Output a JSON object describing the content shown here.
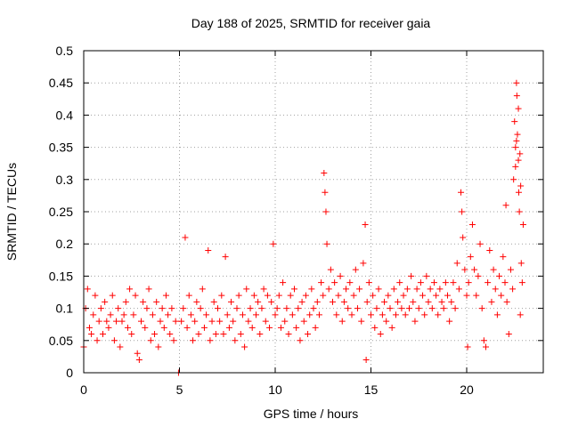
{
  "chart_data": {
    "type": "scatter",
    "title": "Day 188 of 2025, SRMTID for receiver gaia",
    "xlabel": "GPS time / hours",
    "ylabel": "SRMTID / TECUs",
    "xlim": [
      0,
      24
    ],
    "ylim": [
      0,
      0.5
    ],
    "xticks": [
      0,
      5,
      10,
      15,
      20
    ],
    "xtick_labels": [
      "0",
      "5",
      "10",
      "15",
      "20"
    ],
    "yticks": [
      0,
      0.05,
      0.1,
      0.15,
      0.2,
      0.25,
      0.3,
      0.35,
      0.4,
      0.45,
      0.5
    ],
    "ytick_labels": [
      "0",
      "0.05",
      "0.1",
      "0.15",
      "0.2",
      "0.25",
      "0.3",
      "0.35",
      "0.4",
      "0.45",
      "0.5"
    ],
    "grid": true,
    "marker": "+",
    "color": "#ff0000",
    "series": [
      {
        "name": "SRMTID",
        "points": [
          [
            0.0,
            0.04
          ],
          [
            0.1,
            0.1
          ],
          [
            0.2,
            0.13
          ],
          [
            0.3,
            0.07
          ],
          [
            0.4,
            0.06
          ],
          [
            0.5,
            0.09
          ],
          [
            0.6,
            0.12
          ],
          [
            0.7,
            0.05
          ],
          [
            0.8,
            0.08
          ],
          [
            0.9,
            0.1
          ],
          [
            1.0,
            0.06
          ],
          [
            1.1,
            0.11
          ],
          [
            1.2,
            0.08
          ],
          [
            1.3,
            0.07
          ],
          [
            1.4,
            0.09
          ],
          [
            1.5,
            0.12
          ],
          [
            1.6,
            0.05
          ],
          [
            1.7,
            0.08
          ],
          [
            1.8,
            0.1
          ],
          [
            1.9,
            0.04
          ],
          [
            2.0,
            0.08
          ],
          [
            2.1,
            0.09
          ],
          [
            2.2,
            0.11
          ],
          [
            2.3,
            0.07
          ],
          [
            2.4,
            0.13
          ],
          [
            2.5,
            0.06
          ],
          [
            2.6,
            0.09
          ],
          [
            2.7,
            0.12
          ],
          [
            2.8,
            0.03
          ],
          [
            2.9,
            0.02
          ],
          [
            3.0,
            0.08
          ],
          [
            3.1,
            0.11
          ],
          [
            3.2,
            0.07
          ],
          [
            3.3,
            0.1
          ],
          [
            3.4,
            0.13
          ],
          [
            3.5,
            0.05
          ],
          [
            3.6,
            0.09
          ],
          [
            3.7,
            0.06
          ],
          [
            3.8,
            0.11
          ],
          [
            3.9,
            0.04
          ],
          [
            4.0,
            0.08
          ],
          [
            4.1,
            0.1
          ],
          [
            4.2,
            0.07
          ],
          [
            4.3,
            0.12
          ],
          [
            4.4,
            0.09
          ],
          [
            4.5,
            0.06
          ],
          [
            4.6,
            0.1
          ],
          [
            4.7,
            0.05
          ],
          [
            4.8,
            0.08
          ],
          [
            4.95,
            0.0
          ],
          [
            5.1,
            0.08
          ],
          [
            5.2,
            0.1
          ],
          [
            5.3,
            0.21
          ],
          [
            5.4,
            0.07
          ],
          [
            5.5,
            0.12
          ],
          [
            5.6,
            0.09
          ],
          [
            5.7,
            0.05
          ],
          [
            5.8,
            0.08
          ],
          [
            5.9,
            0.11
          ],
          [
            6.0,
            0.06
          ],
          [
            6.1,
            0.1
          ],
          [
            6.2,
            0.13
          ],
          [
            6.3,
            0.07
          ],
          [
            6.4,
            0.09
          ],
          [
            6.5,
            0.19
          ],
          [
            6.6,
            0.05
          ],
          [
            6.7,
            0.08
          ],
          [
            6.8,
            0.11
          ],
          [
            6.9,
            0.06
          ],
          [
            7.0,
            0.1
          ],
          [
            7.1,
            0.08
          ],
          [
            7.2,
            0.12
          ],
          [
            7.3,
            0.06
          ],
          [
            7.4,
            0.18
          ],
          [
            7.5,
            0.09
          ],
          [
            7.6,
            0.07
          ],
          [
            7.7,
            0.11
          ],
          [
            7.8,
            0.08
          ],
          [
            7.9,
            0.05
          ],
          [
            8.0,
            0.1
          ],
          [
            8.1,
            0.12
          ],
          [
            8.2,
            0.06
          ],
          [
            8.3,
            0.09
          ],
          [
            8.4,
            0.04
          ],
          [
            8.5,
            0.13
          ],
          [
            8.6,
            0.08
          ],
          [
            8.7,
            0.1
          ],
          [
            8.8,
            0.07
          ],
          [
            8.9,
            0.12
          ],
          [
            9.0,
            0.09
          ],
          [
            9.1,
            0.11
          ],
          [
            9.2,
            0.06
          ],
          [
            9.3,
            0.1
          ],
          [
            9.4,
            0.13
          ],
          [
            9.5,
            0.08
          ],
          [
            9.6,
            0.12
          ],
          [
            9.7,
            0.07
          ],
          [
            9.8,
            0.11
          ],
          [
            9.9,
            0.2
          ],
          [
            10.0,
            0.09
          ],
          [
            10.1,
            0.1
          ],
          [
            10.2,
            0.12
          ],
          [
            10.3,
            0.07
          ],
          [
            10.4,
            0.14
          ],
          [
            10.5,
            0.08
          ],
          [
            10.6,
            0.1
          ],
          [
            10.7,
            0.06
          ],
          [
            10.8,
            0.12
          ],
          [
            10.9,
            0.09
          ],
          [
            11.0,
            0.13
          ],
          [
            11.1,
            0.07
          ],
          [
            11.2,
            0.1
          ],
          [
            11.3,
            0.05
          ],
          [
            11.4,
            0.11
          ],
          [
            11.5,
            0.08
          ],
          [
            11.6,
            0.12
          ],
          [
            11.7,
            0.06
          ],
          [
            11.8,
            0.09
          ],
          [
            11.9,
            0.13
          ],
          [
            12.0,
            0.1
          ],
          [
            12.1,
            0.07
          ],
          [
            12.2,
            0.11
          ],
          [
            12.3,
            0.09
          ],
          [
            12.4,
            0.14
          ],
          [
            12.5,
            0.12
          ],
          [
            12.55,
            0.31
          ],
          [
            12.6,
            0.28
          ],
          [
            12.65,
            0.25
          ],
          [
            12.7,
            0.2
          ],
          [
            12.8,
            0.13
          ],
          [
            12.9,
            0.16
          ],
          [
            13.0,
            0.11
          ],
          [
            13.1,
            0.14
          ],
          [
            13.2,
            0.09
          ],
          [
            13.3,
            0.12
          ],
          [
            13.4,
            0.15
          ],
          [
            13.5,
            0.08
          ],
          [
            13.6,
            0.11
          ],
          [
            13.7,
            0.13
          ],
          [
            13.8,
            0.1
          ],
          [
            13.9,
            0.14
          ],
          [
            14.0,
            0.09
          ],
          [
            14.1,
            0.12
          ],
          [
            14.2,
            0.16
          ],
          [
            14.3,
            0.1
          ],
          [
            14.4,
            0.13
          ],
          [
            14.5,
            0.08
          ],
          [
            14.6,
            0.17
          ],
          [
            14.7,
            0.23
          ],
          [
            14.75,
            0.02
          ],
          [
            14.8,
            0.11
          ],
          [
            14.9,
            0.14
          ],
          [
            15.0,
            0.09
          ],
          [
            15.1,
            0.12
          ],
          [
            15.2,
            0.07
          ],
          [
            15.3,
            0.1
          ],
          [
            15.4,
            0.13
          ],
          [
            15.5,
            0.06
          ],
          [
            15.6,
            0.09
          ],
          [
            15.7,
            0.11
          ],
          [
            15.8,
            0.08
          ],
          [
            15.9,
            0.12
          ],
          [
            16.0,
            0.1
          ],
          [
            16.1,
            0.07
          ],
          [
            16.2,
            0.13
          ],
          [
            16.3,
            0.09
          ],
          [
            16.4,
            0.11
          ],
          [
            16.5,
            0.14
          ],
          [
            16.6,
            0.1
          ],
          [
            16.7,
            0.12
          ],
          [
            16.8,
            0.09
          ],
          [
            16.9,
            0.13
          ],
          [
            17.0,
            0.1
          ],
          [
            17.1,
            0.15
          ],
          [
            17.2,
            0.11
          ],
          [
            17.3,
            0.08
          ],
          [
            17.4,
            0.13
          ],
          [
            17.5,
            0.1
          ],
          [
            17.6,
            0.14
          ],
          [
            17.7,
            0.12
          ],
          [
            17.8,
            0.09
          ],
          [
            17.9,
            0.15
          ],
          [
            18.0,
            0.11
          ],
          [
            18.1,
            0.13
          ],
          [
            18.2,
            0.1
          ],
          [
            18.3,
            0.14
          ],
          [
            18.4,
            0.12
          ],
          [
            18.5,
            0.09
          ],
          [
            18.6,
            0.13
          ],
          [
            18.7,
            0.11
          ],
          [
            18.8,
            0.1
          ],
          [
            18.9,
            0.14
          ],
          [
            19.0,
            0.12
          ],
          [
            19.1,
            0.08
          ],
          [
            19.2,
            0.11
          ],
          [
            19.3,
            0.14
          ],
          [
            19.4,
            0.1
          ],
          [
            19.5,
            0.17
          ],
          [
            19.6,
            0.13
          ],
          [
            19.7,
            0.28
          ],
          [
            19.75,
            0.25
          ],
          [
            19.8,
            0.21
          ],
          [
            19.9,
            0.16
          ],
          [
            20.0,
            0.12
          ],
          [
            20.05,
            0.04
          ],
          [
            20.1,
            0.14
          ],
          [
            20.2,
            0.18
          ],
          [
            20.3,
            0.23
          ],
          [
            20.4,
            0.16
          ],
          [
            20.5,
            0.12
          ],
          [
            20.6,
            0.15
          ],
          [
            20.7,
            0.2
          ],
          [
            20.8,
            0.1
          ],
          [
            20.9,
            0.05
          ],
          [
            21.0,
            0.04
          ],
          [
            21.1,
            0.14
          ],
          [
            21.2,
            0.19
          ],
          [
            21.3,
            0.11
          ],
          [
            21.4,
            0.16
          ],
          [
            21.5,
            0.13
          ],
          [
            21.6,
            0.09
          ],
          [
            21.7,
            0.15
          ],
          [
            21.8,
            0.12
          ],
          [
            21.9,
            0.18
          ],
          [
            22.0,
            0.14
          ],
          [
            22.05,
            0.26
          ],
          [
            22.1,
            0.11
          ],
          [
            22.2,
            0.06
          ],
          [
            22.3,
            0.16
          ],
          [
            22.4,
            0.13
          ],
          [
            22.45,
            0.3
          ],
          [
            22.5,
            0.39
          ],
          [
            22.55,
            0.35
          ],
          [
            22.6,
            0.45
          ],
          [
            22.62,
            0.43
          ],
          [
            22.65,
            0.37
          ],
          [
            22.7,
            0.33
          ],
          [
            22.72,
            0.28
          ],
          [
            22.75,
            0.25
          ],
          [
            22.8,
            0.09
          ],
          [
            22.85,
            0.17
          ],
          [
            22.9,
            0.14
          ],
          [
            22.95,
            0.23
          ],
          [
            22.6,
            0.36
          ],
          [
            22.7,
            0.41
          ],
          [
            22.78,
            0.34
          ],
          [
            22.82,
            0.29
          ],
          [
            22.55,
            0.32
          ]
        ]
      }
    ]
  }
}
